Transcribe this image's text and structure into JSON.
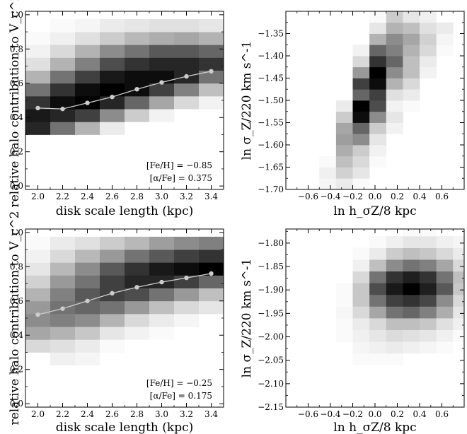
{
  "chart_data": [
    {
      "type": "heatmap",
      "panel": "top-left",
      "xlabel": "disk scale length (kpc)",
      "ylabel": "relative halo contribution to V_c^2",
      "xlim": [
        1.9,
        3.5
      ],
      "ylim": [
        -0.02,
        1.02
      ],
      "xticks": [
        "2.0",
        "2.2",
        "2.4",
        "2.6",
        "2.8",
        "3.0",
        "3.2",
        "3.4"
      ],
      "yticks": [
        "0.0",
        "0.2",
        "0.4",
        "0.6",
        "0.8",
        "1.0"
      ],
      "x_edges": [
        1.9,
        2.1,
        2.3,
        2.5,
        2.7,
        2.9,
        3.1,
        3.3,
        3.5
      ],
      "y_edges": [
        0.3,
        0.375,
        0.45,
        0.525,
        0.6,
        0.675,
        0.75,
        0.825,
        0.9,
        0.975
      ],
      "cells": [
        [
          0.85,
          0.55,
          0.3,
          0.08,
          0.0,
          0.0,
          0.0,
          0.0
        ],
        [
          0.9,
          0.85,
          0.75,
          0.45,
          0.2,
          0.05,
          0.0,
          0.0
        ],
        [
          0.8,
          0.95,
          1.0,
          0.85,
          0.6,
          0.35,
          0.15,
          0.05
        ],
        [
          0.55,
          0.8,
          0.95,
          1.0,
          0.95,
          0.75,
          0.5,
          0.25
        ],
        [
          0.3,
          0.55,
          0.75,
          0.9,
          0.95,
          0.95,
          0.85,
          0.55
        ],
        [
          0.12,
          0.3,
          0.5,
          0.7,
          0.8,
          0.85,
          0.85,
          0.8
        ],
        [
          0.05,
          0.15,
          0.3,
          0.45,
          0.55,
          0.65,
          0.65,
          0.6
        ],
        [
          0.02,
          0.06,
          0.12,
          0.2,
          0.28,
          0.32,
          0.35,
          0.3
        ],
        [
          0.0,
          0.02,
          0.04,
          0.08,
          0.1,
          0.12,
          0.12,
          0.1
        ]
      ],
      "line": {
        "x": [
          2.0,
          2.2,
          2.4,
          2.6,
          2.8,
          3.0,
          3.2,
          3.4
        ],
        "y": [
          0.455,
          0.45,
          0.485,
          0.52,
          0.565,
          0.605,
          0.64,
          0.67
        ],
        "color": "#cccccc"
      },
      "annotations": [
        "[Fe/H] = −0.85",
        "[α/Fe] = 0.375"
      ]
    },
    {
      "type": "heatmap",
      "panel": "top-right",
      "xlabel": "ln h_σZ/8 kpc",
      "ylabel": "ln σ_Z/220 km s^-1",
      "xlim": [
        -0.8,
        0.8
      ],
      "ylim": [
        -1.7,
        -1.3
      ],
      "xticks": [
        "−0.6",
        "−0.4",
        "−0.2",
        "0.0",
        "0.2",
        "0.4",
        "0.6"
      ],
      "yticks": [
        "−1.70",
        "−1.65",
        "−1.60",
        "−1.55",
        "−1.50",
        "−1.45",
        "−1.40",
        "−1.35"
      ],
      "x_edges": [
        -0.5,
        -0.35,
        -0.2,
        -0.05,
        0.1,
        0.25,
        0.4,
        0.55,
        0.7
      ],
      "y_edges": [
        -1.7,
        -1.675,
        -1.65,
        -1.625,
        -1.6,
        -1.575,
        -1.55,
        -1.525,
        -1.5,
        -1.475,
        -1.45,
        -1.425,
        -1.4,
        -1.375,
        -1.35,
        -1.325,
        -1.3
      ],
      "cells": [
        [
          0.04,
          0.08,
          0.02,
          0.0,
          0.0,
          0.0,
          0.0,
          0.0
        ],
        [
          0.06,
          0.18,
          0.1,
          0.0,
          0.0,
          0.0,
          0.0,
          0.0
        ],
        [
          0.02,
          0.25,
          0.15,
          0.02,
          0.0,
          0.0,
          0.0,
          0.0
        ],
        [
          0.0,
          0.32,
          0.2,
          0.05,
          0.0,
          0.0,
          0.0,
          0.0
        ],
        [
          0.0,
          0.38,
          0.45,
          0.1,
          0.0,
          0.0,
          0.0,
          0.0
        ],
        [
          0.0,
          0.35,
          0.6,
          0.2,
          0.05,
          0.0,
          0.0,
          0.0
        ],
        [
          0.0,
          0.2,
          0.95,
          0.45,
          0.1,
          0.0,
          0.0,
          0.0
        ],
        [
          0.0,
          0.08,
          1.0,
          0.7,
          0.05,
          0.02,
          0.0,
          0.0
        ],
        [
          0.0,
          0.0,
          0.6,
          0.75,
          0.12,
          0.08,
          0.0,
          0.0
        ],
        [
          0.0,
          0.0,
          0.75,
          0.95,
          0.3,
          0.15,
          0.0,
          0.0
        ],
        [
          0.0,
          0.0,
          0.4,
          1.0,
          0.45,
          0.25,
          0.05,
          0.0
        ],
        [
          0.0,
          0.0,
          0.15,
          0.8,
          0.6,
          0.25,
          0.08,
          0.0
        ],
        [
          0.0,
          0.0,
          0.05,
          0.6,
          0.5,
          0.3,
          0.15,
          0.02
        ],
        [
          0.0,
          0.0,
          0.0,
          0.3,
          0.45,
          0.35,
          0.18,
          0.04
        ],
        [
          0.0,
          0.0,
          0.0,
          0.1,
          0.3,
          0.25,
          0.12,
          0.08
        ],
        [
          0.0,
          0.0,
          0.0,
          0.02,
          0.2,
          0.1,
          0.06,
          0.0
        ]
      ]
    },
    {
      "type": "heatmap",
      "panel": "bottom-left",
      "xlabel": "disk scale length (kpc)",
      "ylabel": "relative halo contribution to V_c^2",
      "xlim": [
        1.9,
        3.5
      ],
      "ylim": [
        -0.02,
        1.02
      ],
      "xticks": [
        "2.0",
        "2.2",
        "2.4",
        "2.6",
        "2.8",
        "3.0",
        "3.2",
        "3.4"
      ],
      "yticks": [
        "0.0",
        "0.2",
        "0.4",
        "0.6",
        "0.8",
        "1.0"
      ],
      "x_edges": [
        1.9,
        2.1,
        2.3,
        2.5,
        2.7,
        2.9,
        3.1,
        3.3,
        3.5
      ],
      "y_edges": [
        0.225,
        0.3,
        0.375,
        0.45,
        0.525,
        0.6,
        0.675,
        0.75,
        0.825,
        0.9,
        0.975
      ],
      "cells": [
        [
          0.0,
          0.06,
          0.04,
          0.0,
          0.0,
          0.0,
          0.0,
          0.0
        ],
        [
          0.15,
          0.12,
          0.08,
          0.02,
          0.0,
          0.0,
          0.0,
          0.0
        ],
        [
          0.35,
          0.3,
          0.22,
          0.1,
          0.05,
          0.02,
          0.0,
          0.0
        ],
        [
          0.45,
          0.5,
          0.45,
          0.3,
          0.15,
          0.08,
          0.04,
          0.0
        ],
        [
          0.4,
          0.55,
          0.6,
          0.55,
          0.4,
          0.25,
          0.15,
          0.1
        ],
        [
          0.3,
          0.5,
          0.65,
          0.75,
          0.7,
          0.55,
          0.4,
          0.25
        ],
        [
          0.18,
          0.4,
          0.55,
          0.75,
          0.85,
          0.85,
          0.75,
          0.6
        ],
        [
          0.1,
          0.28,
          0.45,
          0.65,
          0.8,
          0.9,
          0.95,
          1.0
        ],
        [
          0.05,
          0.15,
          0.28,
          0.4,
          0.55,
          0.65,
          0.75,
          0.8
        ],
        [
          0.02,
          0.08,
          0.12,
          0.2,
          0.28,
          0.38,
          0.45,
          0.5
        ],
        [
          0.0,
          0.02,
          0.05,
          0.08,
          0.1,
          0.12,
          0.14,
          0.12
        ]
      ],
      "line": {
        "x": [
          2.0,
          2.2,
          2.4,
          2.6,
          2.8,
          3.0,
          3.2,
          3.4
        ],
        "y": [
          0.52,
          0.555,
          0.6,
          0.645,
          0.68,
          0.71,
          0.735,
          0.76
        ],
        "color": "#cccccc"
      },
      "annotations": [
        "[Fe/H] = −0.25",
        "[α/Fe] = 0.175"
      ]
    },
    {
      "type": "heatmap",
      "panel": "bottom-right",
      "xlabel": "ln h_σZ/8 kpc",
      "ylabel": "ln σ_Z/220 km s^-1",
      "xlim": [
        -0.8,
        0.8
      ],
      "ylim": [
        -2.15,
        -1.77
      ],
      "xticks": [
        "−0.6",
        "−0.4",
        "−0.2",
        "0.0",
        "0.2",
        "0.4",
        "0.6"
      ],
      "yticks": [
        "−2.15",
        "−2.10",
        "−2.05",
        "−2.00",
        "−1.95",
        "−1.90",
        "−1.85",
        "−1.80"
      ],
      "x_edges": [
        -0.35,
        -0.2,
        -0.05,
        0.1,
        0.25,
        0.4,
        0.55,
        0.7,
        0.8
      ],
      "y_edges": [
        -2.06,
        -2.035,
        -2.01,
        -1.985,
        -1.96,
        -1.935,
        -1.91,
        -1.885,
        -1.86,
        -1.835,
        -1.81,
        -1.785,
        -1.77
      ],
      "cells": [
        [
          0.0,
          0.02,
          0.02,
          0.02,
          0.0,
          0.0,
          0.0,
          0.0
        ],
        [
          0.0,
          0.04,
          0.06,
          0.08,
          0.06,
          0.04,
          0.02,
          0.0
        ],
        [
          0.02,
          0.06,
          0.1,
          0.14,
          0.12,
          0.1,
          0.06,
          0.02
        ],
        [
          0.02,
          0.08,
          0.15,
          0.25,
          0.25,
          0.22,
          0.12,
          0.06
        ],
        [
          0.03,
          0.15,
          0.35,
          0.55,
          0.6,
          0.5,
          0.32,
          0.1
        ],
        [
          0.02,
          0.22,
          0.55,
          0.75,
          0.8,
          0.72,
          0.45,
          0.15
        ],
        [
          0.02,
          0.22,
          0.7,
          0.9,
          1.0,
          0.88,
          0.65,
          0.22
        ],
        [
          0.0,
          0.15,
          0.55,
          0.8,
          0.88,
          0.8,
          0.55,
          0.25
        ],
        [
          0.0,
          0.06,
          0.25,
          0.45,
          0.55,
          0.5,
          0.35,
          0.15
        ],
        [
          0.0,
          0.02,
          0.08,
          0.2,
          0.25,
          0.22,
          0.15,
          0.08
        ],
        [
          0.0,
          0.0,
          0.02,
          0.06,
          0.1,
          0.1,
          0.06,
          0.04
        ],
        [
          0.0,
          0.0,
          0.0,
          0.0,
          0.02,
          0.02,
          0.0,
          0.0
        ]
      ]
    }
  ],
  "colors": {
    "cmap_low": "#ffffff",
    "cmap_high": "#000000",
    "line": "#cccccc"
  }
}
